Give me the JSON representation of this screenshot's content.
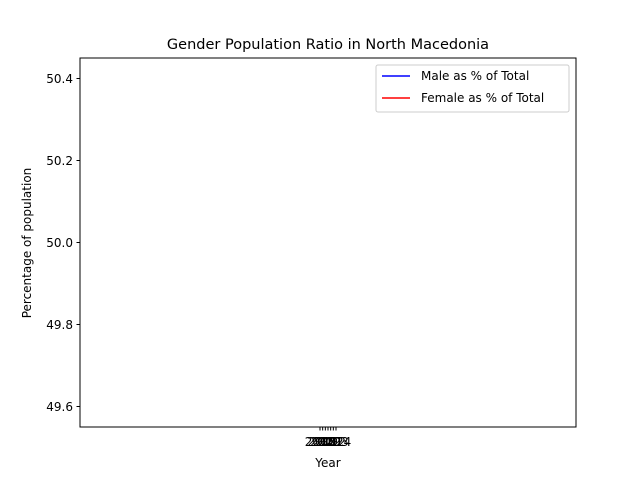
{
  "chart_data": {
    "type": "line",
    "title": "Gender Population Ratio in North Macedonia",
    "xlabel": "Year",
    "ylabel": "Percentage of population",
    "ylim": [
      49.55,
      50.45
    ],
    "y_ticks": [
      "49.6",
      "49.8",
      "50.0",
      "50.2",
      "50.4"
    ],
    "x_ticks": [
      "2018",
      "2019",
      "2020",
      "2021",
      "2022",
      "2023",
      "2024"
    ],
    "grid": false,
    "legend_position": "top-right",
    "series": [
      {
        "name": "Male as % of Total",
        "color": "#0000ff",
        "values": []
      },
      {
        "name": "Female as % of Total",
        "color": "#ff0000",
        "values": []
      }
    ]
  }
}
